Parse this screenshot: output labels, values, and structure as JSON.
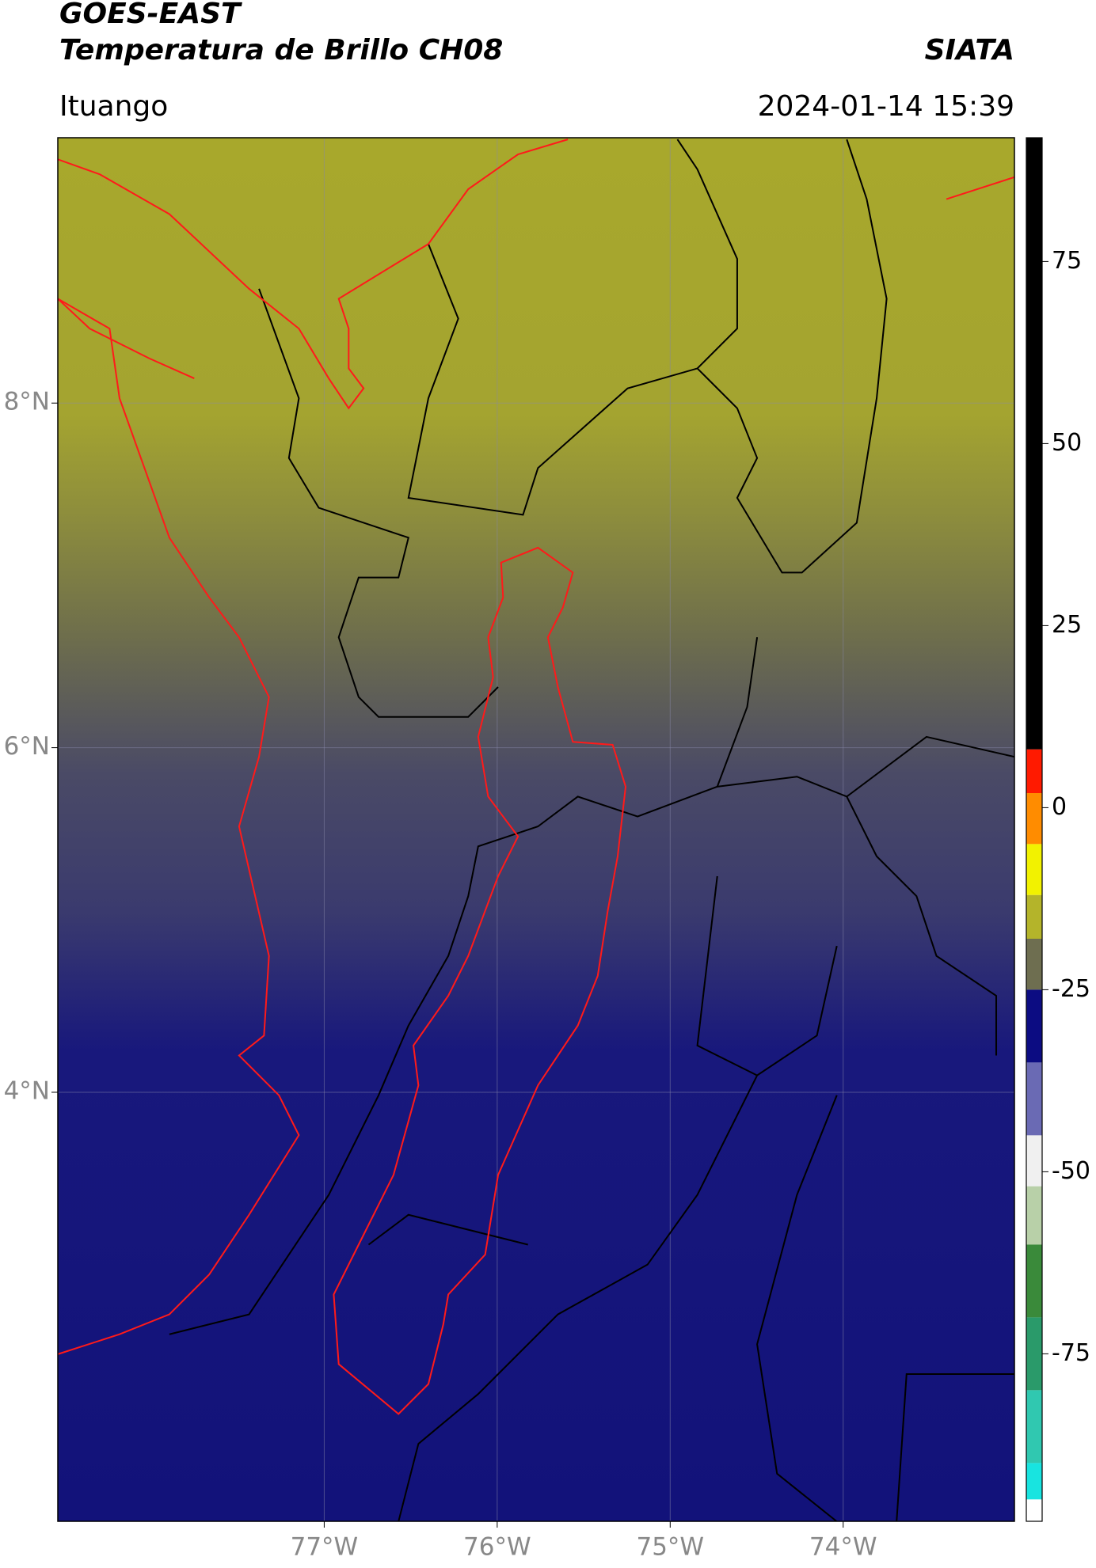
{
  "header": {
    "title": "GOES-EAST",
    "subtitle": "Temperatura de Brillo CH08",
    "location": "Ituango",
    "source": "SIATA",
    "timestamp": "2024-01-14 15:39"
  },
  "map": {
    "lat_range": [
      1.51,
      9.54
    ],
    "lon_range": [
      -78.54,
      -73.01
    ],
    "lat_ticks": [
      {
        "value": 8,
        "label": "8°N"
      },
      {
        "value": 6,
        "label": "6°N"
      },
      {
        "value": 4,
        "label": "4°N"
      }
    ],
    "lon_ticks": [
      {
        "value": -77,
        "label": "77°W"
      },
      {
        "value": -76,
        "label": "76°W"
      },
      {
        "value": -75,
        "label": "75°W"
      },
      {
        "value": -74,
        "label": "74°W"
      }
    ]
  },
  "colorbar": {
    "range": [
      -98,
      92
    ],
    "ticks": [
      75,
      50,
      25,
      0,
      -25,
      -50,
      -75
    ],
    "bands": [
      {
        "from": 92,
        "to": 8,
        "color": "#000000"
      },
      {
        "from": 8,
        "to": 2,
        "color": "#ff1a00"
      },
      {
        "from": 2,
        "to": -5,
        "color": "#ff8c00"
      },
      {
        "from": -5,
        "to": -12,
        "color": "#f2f200"
      },
      {
        "from": -12,
        "to": -18,
        "color": "#b4b42a"
      },
      {
        "from": -18,
        "to": -25,
        "color": "#6e6e50"
      },
      {
        "from": -25,
        "to": -35,
        "color": "#0c0c82"
      },
      {
        "from": -35,
        "to": -45,
        "color": "#6a6ab4"
      },
      {
        "from": -45,
        "to": -52,
        "color": "#f0f0f0"
      },
      {
        "from": -52,
        "to": -60,
        "color": "#b8d0a8"
      },
      {
        "from": -60,
        "to": -70,
        "color": "#3a8a3a"
      },
      {
        "from": -70,
        "to": -80,
        "color": "#2a9a6a"
      },
      {
        "from": -80,
        "to": -90,
        "color": "#30c8b0"
      },
      {
        "from": -90,
        "to": -95,
        "color": "#18e4e0"
      },
      {
        "from": -95,
        "to": -98,
        "color": "#ffffff"
      }
    ]
  }
}
